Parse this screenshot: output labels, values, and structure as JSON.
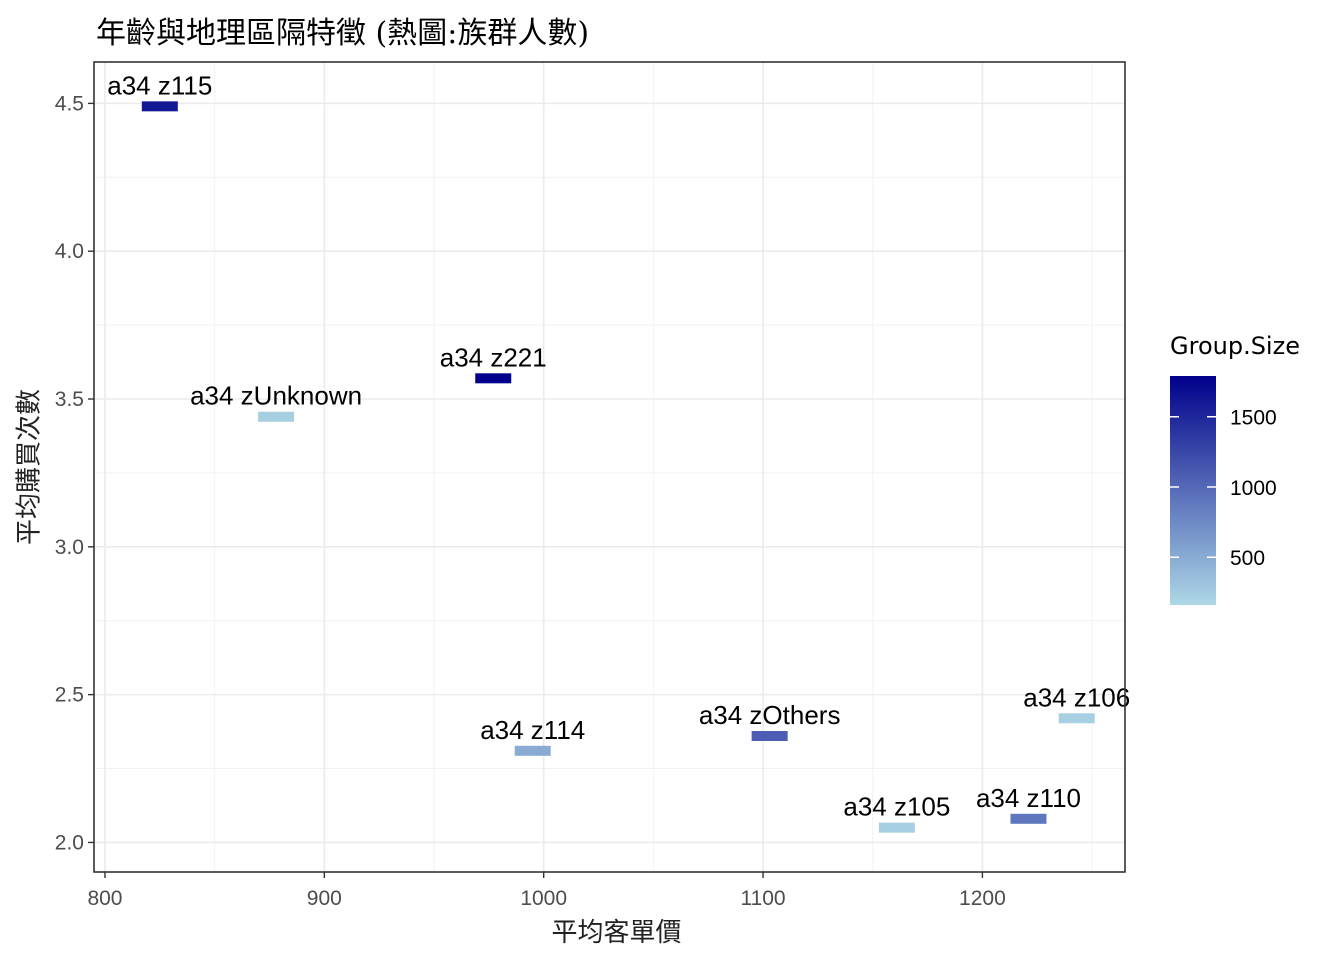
{
  "chart_data": {
    "type": "heatmap",
    "title": "年齡與地理區隔特徵 (熱圖:族群人數)",
    "xlabel": "平均客單價",
    "ylabel": "平均購買次數",
    "xlim": [
      795,
      1265
    ],
    "ylim": [
      1.9,
      4.64
    ],
    "x_ticks": [
      800,
      900,
      1000,
      1100,
      1200
    ],
    "y_ticks": [
      2.0,
      2.5,
      3.0,
      3.5,
      4.0,
      4.5
    ],
    "y_tick_labels": [
      "2.0",
      "2.5",
      "3.0",
      "3.5",
      "4.0",
      "4.5"
    ],
    "grid": true,
    "legend": {
      "title": "Group.Size",
      "placement": "right",
      "min": 160,
      "max": 1790,
      "ticks": [
        500,
        1000,
        1500
      ],
      "color_low": "#ADD8E6",
      "color_high": "#00008B"
    },
    "points": [
      {
        "label": "a34 z115",
        "x": 825,
        "y": 4.49,
        "size": 1620
      },
      {
        "label": "a34 zUnknown",
        "x": 878,
        "y": 3.44,
        "size": 230
      },
      {
        "label": "a34 z221",
        "x": 977,
        "y": 3.57,
        "size": 1780
      },
      {
        "label": "a34 z114",
        "x": 995,
        "y": 2.31,
        "size": 500
      },
      {
        "label": "a34 zOthers",
        "x": 1103,
        "y": 2.36,
        "size": 1080
      },
      {
        "label": "a34 z106",
        "x": 1243,
        "y": 2.42,
        "size": 220
      },
      {
        "label": "a34 z105",
        "x": 1161,
        "y": 2.05,
        "size": 230
      },
      {
        "label": "a34 z110",
        "x": 1221,
        "y": 2.08,
        "size": 900
      }
    ]
  }
}
